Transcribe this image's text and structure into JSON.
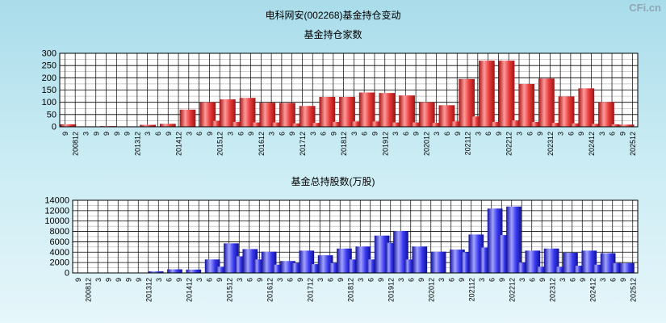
{
  "page": {
    "title": "电科网安(002268)基金持仓变动",
    "watermark": "CFi.cn"
  },
  "colors": {
    "plot_bg": "#ffffff",
    "grid": "#000000",
    "top_bar": "#e83b3b",
    "top_bar_light": "#ff9a9a",
    "top_bar_dark": "#a01414",
    "bottom_bar": "#3b3bf0",
    "bottom_bar_light": "#a2a2ff",
    "bottom_bar_dark": "#10109a"
  },
  "chart_data": [
    {
      "type": "bar",
      "title": "基金持仓家数",
      "ylim": [
        0,
        300
      ],
      "yticks": [
        0,
        50,
        100,
        150,
        200,
        250,
        300
      ],
      "categories": [
        "9",
        "200812",
        "3",
        "9",
        "9",
        "9",
        "9",
        "201312",
        "3",
        "6",
        "9",
        "201412",
        "3",
        "6",
        "9",
        "201512",
        "3",
        "6",
        "9",
        "201612",
        "3",
        "6",
        "9",
        "201712",
        "3",
        "6",
        "9",
        "201812",
        "3",
        "6",
        "9",
        "201912",
        "3",
        "6",
        "9",
        "202012",
        "3",
        "6",
        "9",
        "202112",
        "3",
        "6",
        "9",
        "202212",
        "3",
        "6",
        "9",
        "202312",
        "3",
        "6",
        "9",
        "202412",
        "3",
        "6",
        "9",
        "202512"
      ],
      "pairs": [
        [
          10,
          0
        ],
        [
          2,
          0
        ],
        [
          3,
          0
        ],
        [
          2,
          0
        ],
        [
          8,
          0
        ],
        [
          12,
          0
        ],
        [
          70,
          0
        ],
        [
          100,
          24
        ],
        [
          112,
          20
        ],
        [
          118,
          18
        ],
        [
          98,
          18
        ],
        [
          97,
          14
        ],
        [
          85,
          16
        ],
        [
          122,
          20
        ],
        [
          122,
          22
        ],
        [
          140,
          22
        ],
        [
          138,
          18
        ],
        [
          128,
          18
        ],
        [
          100,
          16
        ],
        [
          88,
          22
        ],
        [
          195,
          42
        ],
        [
          270,
          20
        ],
        [
          270,
          26
        ],
        [
          175,
          20
        ],
        [
          197,
          16
        ],
        [
          124,
          14
        ],
        [
          157,
          12
        ],
        [
          101,
          10
        ],
        [
          9,
          0
        ]
      ]
    },
    {
      "type": "bar",
      "title": "基金总持股数(万股)",
      "ylim": [
        0,
        14000
      ],
      "yticks": [
        0,
        2000,
        4000,
        6000,
        8000,
        10000,
        12000,
        14000
      ],
      "categories": [
        "9",
        "200812",
        "3",
        "9",
        "9",
        "9",
        "9",
        "201312",
        "3",
        "6",
        "9",
        "201412",
        "3",
        "6",
        "9",
        "201512",
        "3",
        "6",
        "9",
        "201612",
        "3",
        "6",
        "9",
        "201712",
        "3",
        "6",
        "9",
        "201812",
        "3",
        "6",
        "9",
        "201912",
        "3",
        "6",
        "9",
        "202012",
        "3",
        "6",
        "9",
        "202112",
        "3",
        "6",
        "9",
        "202212",
        "3",
        "6",
        "9",
        "202312",
        "3",
        "6",
        "9",
        "202412",
        "3",
        "6",
        "9",
        "202512"
      ],
      "pairs": [
        [
          50,
          0
        ],
        [
          20,
          0
        ],
        [
          30,
          0
        ],
        [
          20,
          0
        ],
        [
          300,
          0
        ],
        [
          700,
          0
        ],
        [
          650,
          0
        ],
        [
          2600,
          1200
        ],
        [
          5700,
          3200
        ],
        [
          4600,
          2600
        ],
        [
          4100,
          1600
        ],
        [
          2300,
          1900
        ],
        [
          4300,
          1700
        ],
        [
          3400,
          1900
        ],
        [
          4700,
          2600
        ],
        [
          5100,
          2600
        ],
        [
          7200,
          5800
        ],
        [
          8100,
          2600
        ],
        [
          5100,
          0
        ],
        [
          4100,
          0
        ],
        [
          4500,
          4000
        ],
        [
          7400,
          4900
        ],
        [
          12400,
          7300
        ],
        [
          12800,
          2000
        ],
        [
          4300,
          1200
        ],
        [
          4700,
          1200
        ],
        [
          3900,
          1400
        ],
        [
          4300,
          1600
        ],
        [
          3800,
          1900
        ],
        [
          1900,
          0
        ]
      ]
    }
  ]
}
